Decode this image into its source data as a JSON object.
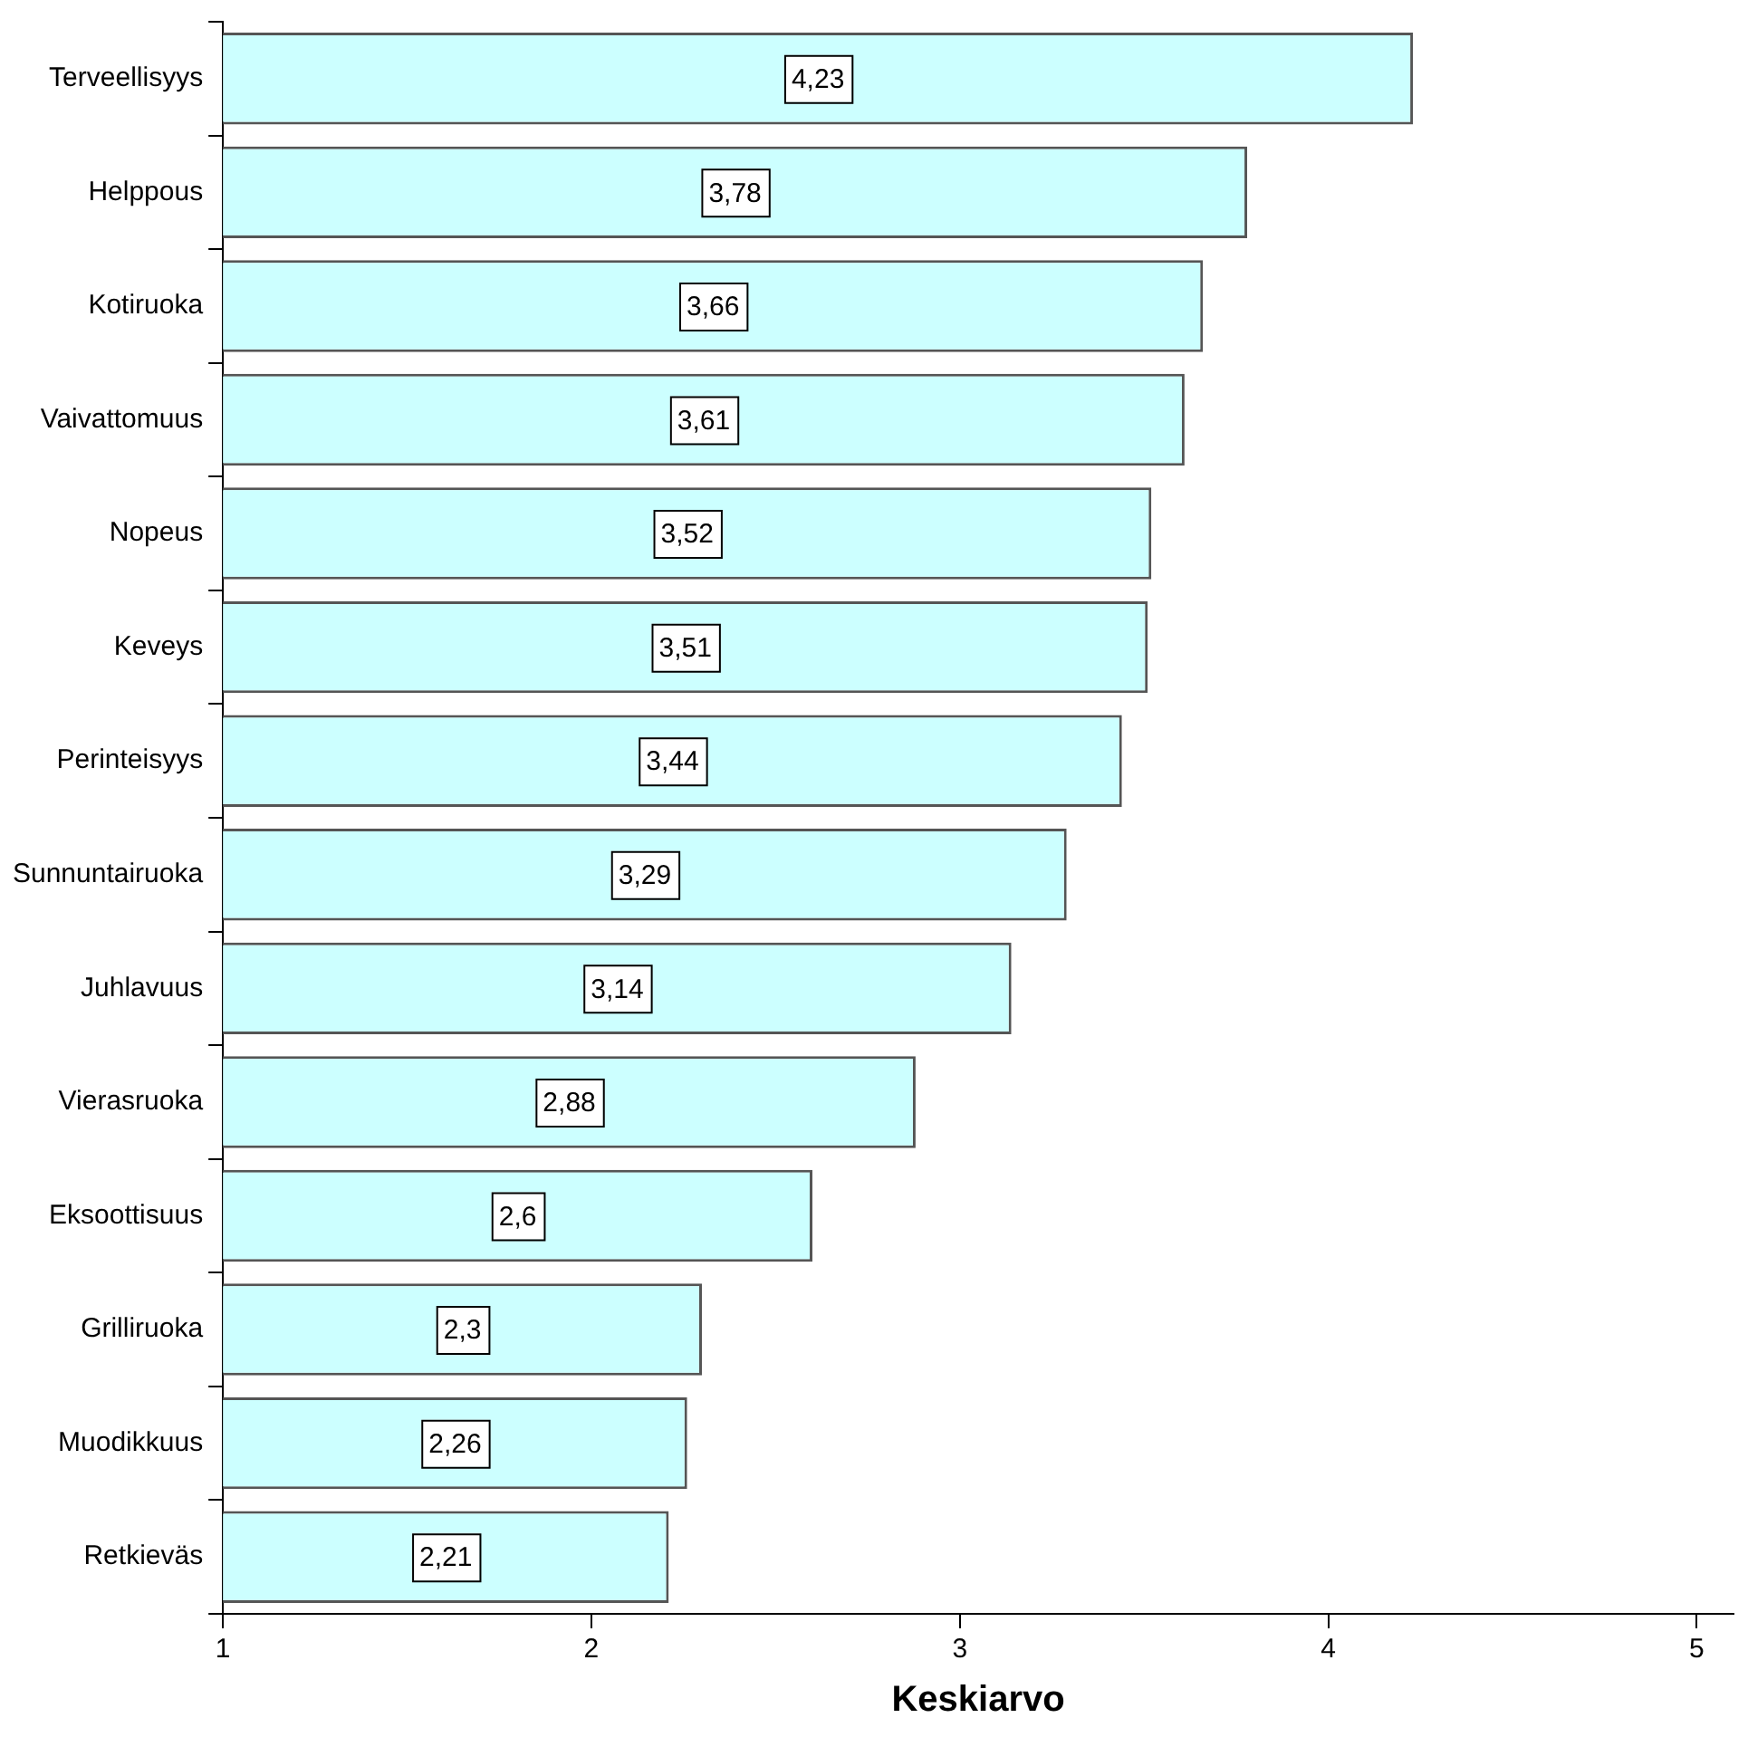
{
  "chart_data": {
    "type": "bar",
    "orientation": "horizontal",
    "xlabel": "Keskiarvo",
    "categories": [
      "Terveellisyys",
      "Helppous",
      "Kotiruoka",
      "Vaivattomuus",
      "Nopeus",
      "Keveys",
      "Perinteisyys",
      "Sunnuntairuoka",
      "Juhlavuus",
      "Vierasruoka",
      "Eksoottisuus",
      "Grilliruoka",
      "Muodikkuus",
      "Retkieväs"
    ],
    "values": [
      4.23,
      3.78,
      3.66,
      3.61,
      3.52,
      3.51,
      3.44,
      3.29,
      3.14,
      2.88,
      2.6,
      2.3,
      2.26,
      2.21
    ],
    "value_labels": [
      "4,23",
      "3,78",
      "3,66",
      "3,61",
      "3,52",
      "3,51",
      "3,44",
      "3,29",
      "3,14",
      "2,88",
      "2,6",
      "2,3",
      "2,26",
      "2,21"
    ],
    "color": "#ccffff",
    "xlim": [
      1,
      5.1
    ],
    "xticks": [
      1,
      2,
      3,
      4,
      5
    ],
    "grid": false,
    "legend": false
  }
}
